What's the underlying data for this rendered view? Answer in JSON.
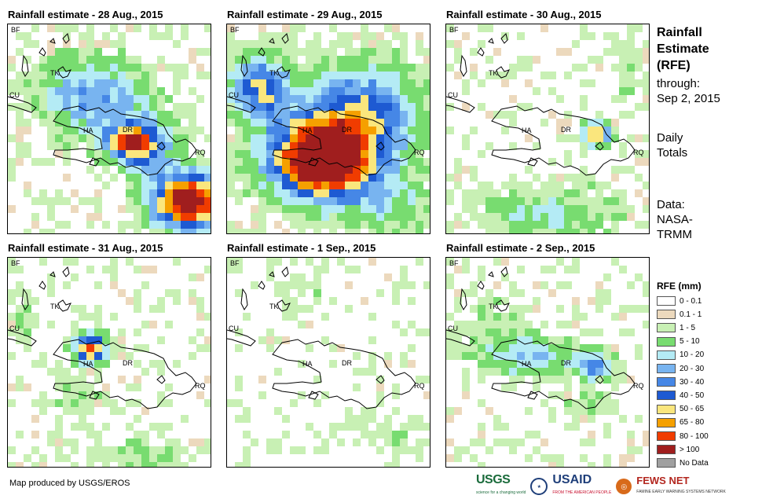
{
  "panels": [
    {
      "title": "Rainfall estimate - 28 Aug., 2015"
    },
    {
      "title": "Rainfall estimate - 29 Aug., 2015"
    },
    {
      "title": "Rainfall estimate - 30 Aug., 2015"
    },
    {
      "title": "Rainfall estimate - 31 Aug., 2015"
    },
    {
      "title": "Rainfall estimate - 1 Sep., 2015"
    },
    {
      "title": "Rainfall estimate - 2 Sep., 2015"
    }
  ],
  "map_labels": {
    "bf": "BF",
    "tk": "TK",
    "cu": "CU",
    "ha": "HA",
    "dr": "DR",
    "rq": "RQ"
  },
  "sidebar": {
    "title_lines": [
      "Rainfall",
      "Estimate",
      "(RFE)"
    ],
    "through_lines": [
      "through:",
      "Sep 2, 2015"
    ],
    "daily_lines": [
      "Daily",
      "Totals"
    ],
    "data_lines": [
      "Data:",
      "NASA-",
      "TRMM"
    ]
  },
  "legend": {
    "title": "RFE (mm)",
    "items": [
      {
        "label": "0 - 0.1",
        "color": "#ffffff"
      },
      {
        "label": "0.1 - 1",
        "color": "#ecd9bd"
      },
      {
        "label": "1 - 5",
        "color": "#c8f0b4"
      },
      {
        "label": "5 - 10",
        "color": "#78dc70"
      },
      {
        "label": "10 - 20",
        "color": "#b4ebf5"
      },
      {
        "label": "20 - 30",
        "color": "#78b4f0"
      },
      {
        "label": "30 - 40",
        "color": "#4687e6"
      },
      {
        "label": "40 - 50",
        "color": "#1e5ad2"
      },
      {
        "label": "50 - 65",
        "color": "#fae67d"
      },
      {
        "label": "65 - 80",
        "color": "#f5a000"
      },
      {
        "label": "80 - 100",
        "color": "#f03c00"
      },
      {
        "label": "> 100",
        "color": "#a01e1e"
      },
      {
        "label": "No Data",
        "color": "#a0a0a0"
      }
    ]
  },
  "footer": {
    "credit": "Map produced by USGS/EROS"
  },
  "logos": {
    "usgs": "USGS",
    "usgs_tagline": "science for a changing world",
    "usaid": "USAID",
    "usaid_tagline": "FROM THE AMERICAN PEOPLE",
    "fews": "FEWS NET",
    "fews_tagline": "FAMINE EARLY WARNING SYSTEMS NETWORK"
  }
}
